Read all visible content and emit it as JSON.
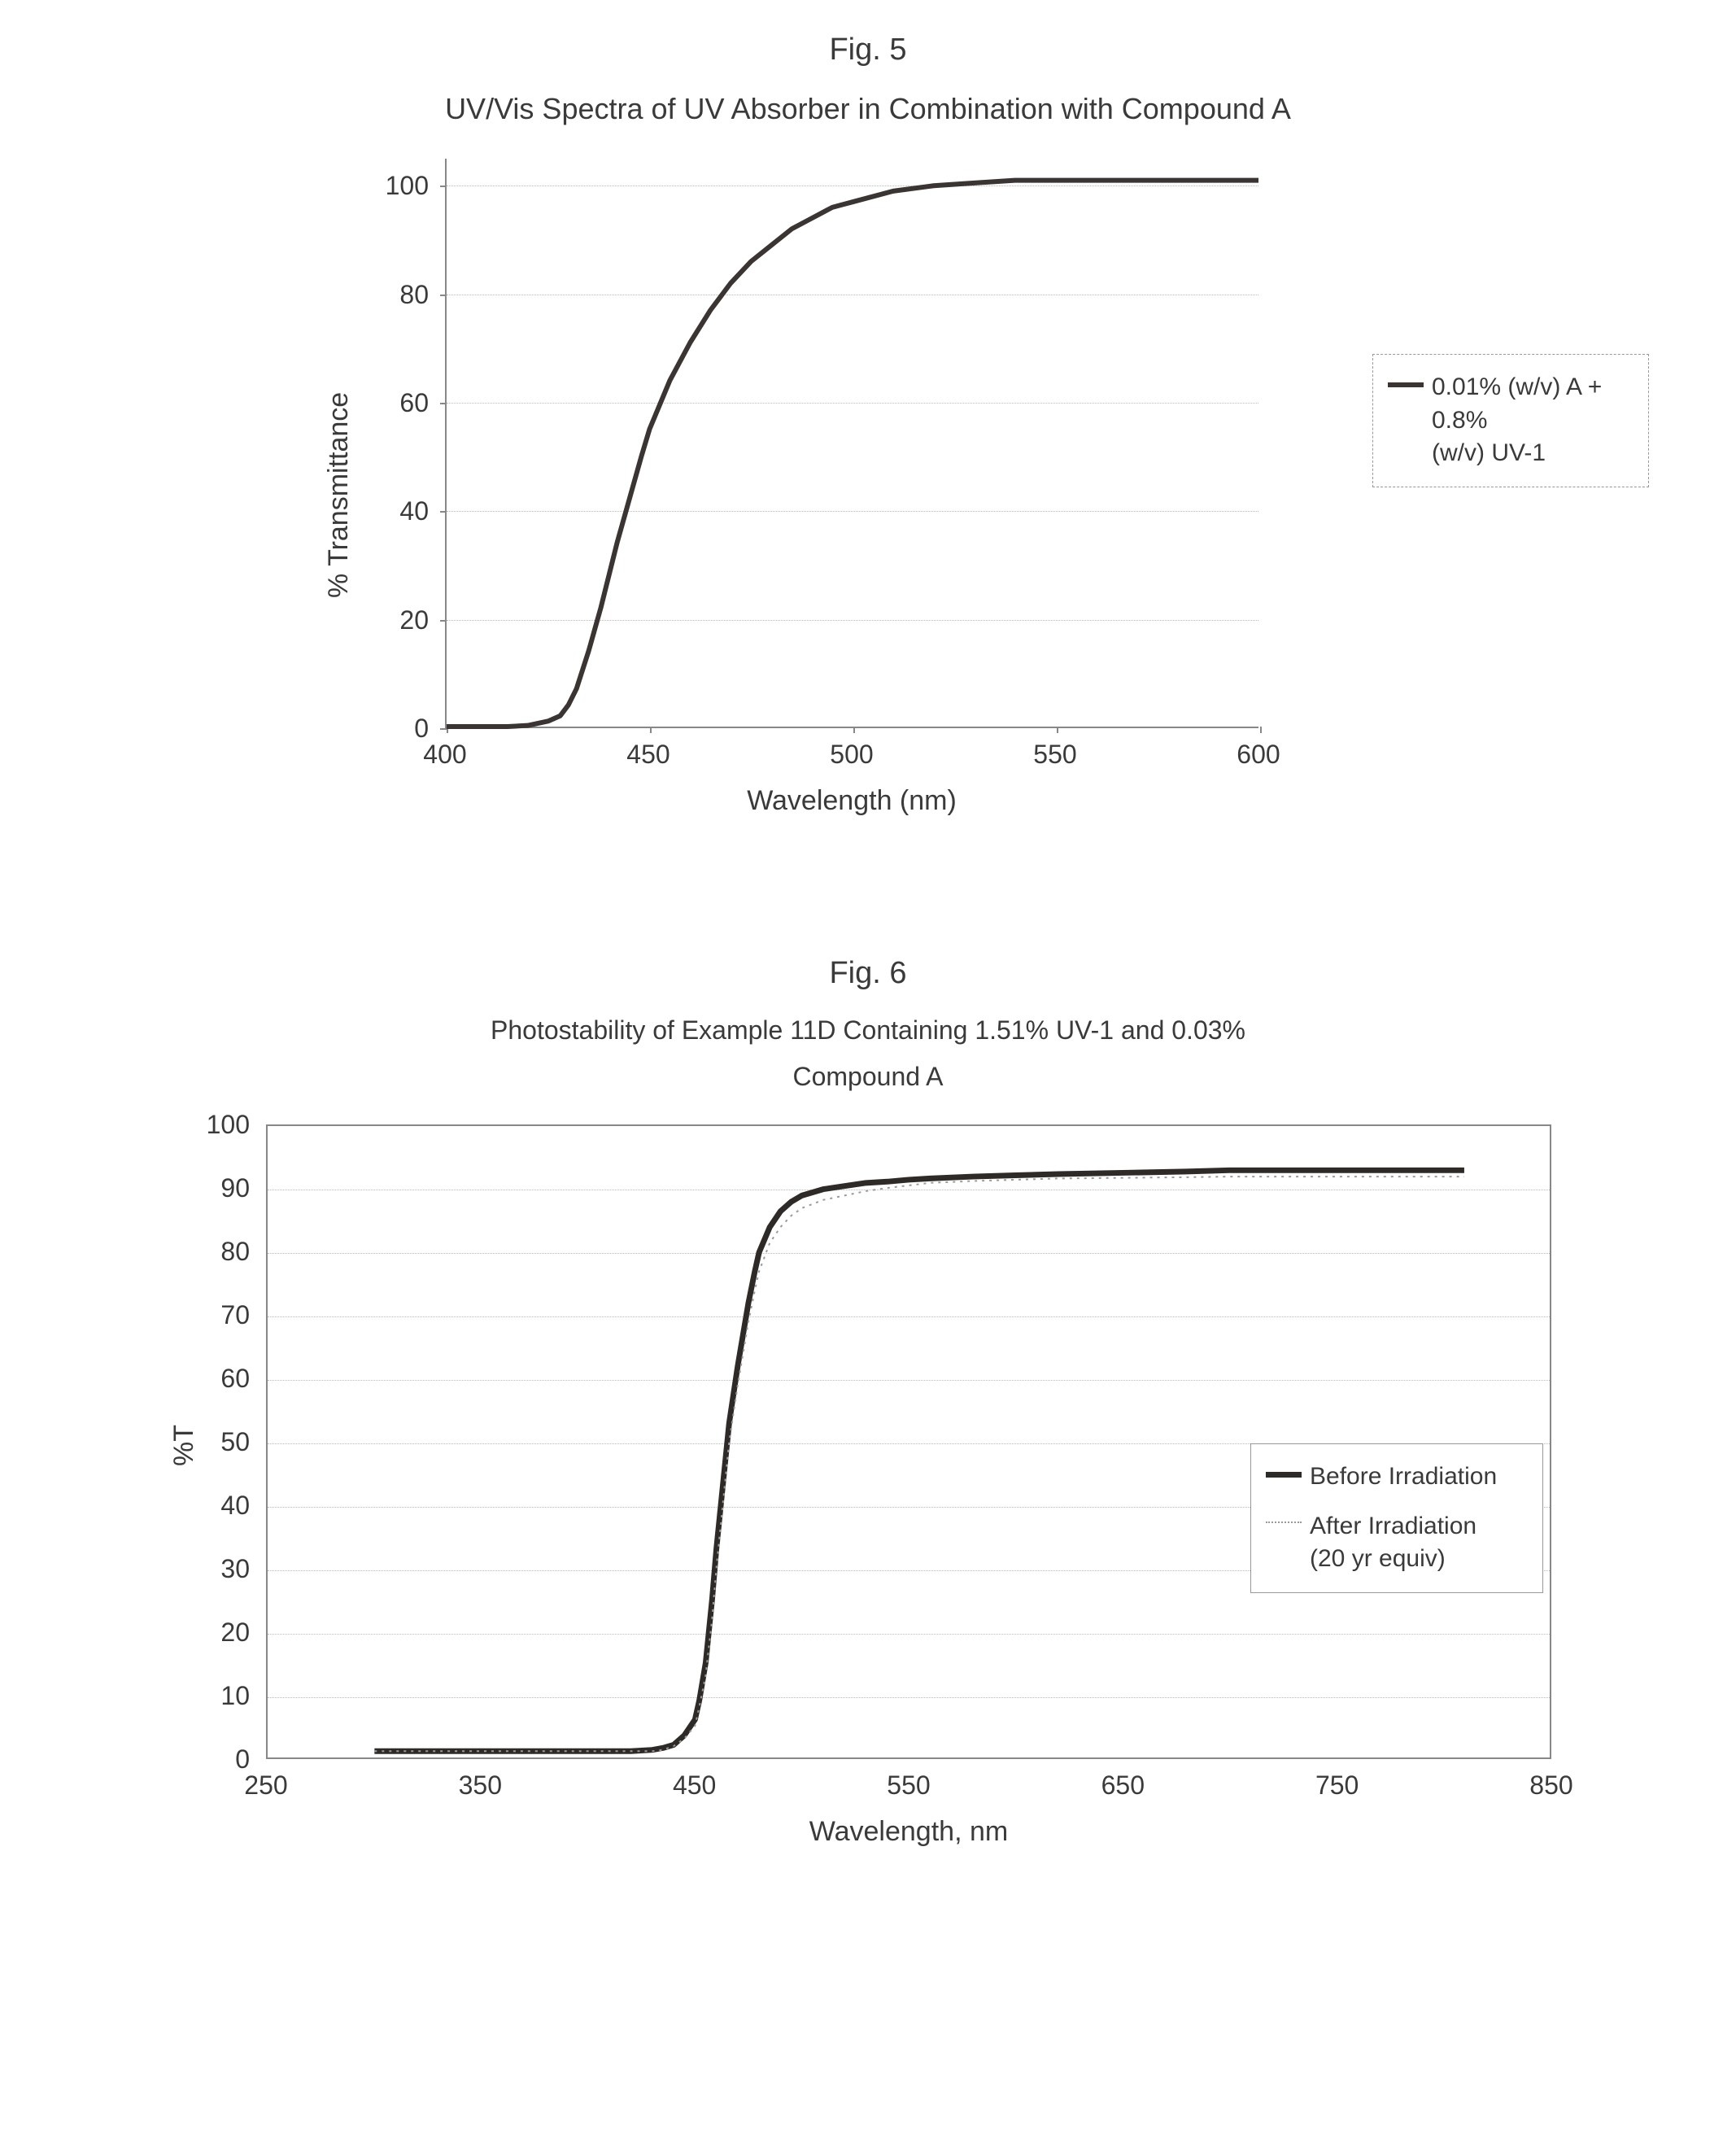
{
  "fig5": {
    "label": "Fig. 5",
    "title": "UV/Vis Spectra of UV Absorber in Combination with Compound A",
    "ylabel": "% Transmittance",
    "xlabel": "Wavelength (nm)",
    "xlim": [
      400,
      600
    ],
    "ylim": [
      0,
      105
    ],
    "xticks": [
      400,
      450,
      500,
      550,
      600
    ],
    "yticks": [
      0,
      20,
      40,
      60,
      80,
      100
    ],
    "tick_fontsize": 32,
    "label_fontsize": 34,
    "grid_color": "#bbbbbb",
    "axis_color": "#888888",
    "background_color": "#ffffff",
    "series": [
      {
        "label_line1": "0.01% (w/v) A + 0.8%",
        "label_line2": "(w/v) UV-1",
        "color": "#3a3432",
        "line_width": 6,
        "x": [
          400,
          405,
          410,
          415,
          420,
          425,
          428,
          430,
          432,
          435,
          438,
          440,
          442,
          445,
          448,
          450,
          455,
          460,
          465,
          470,
          475,
          480,
          485,
          490,
          495,
          500,
          510,
          520,
          530,
          540,
          550,
          560,
          570,
          580,
          590,
          600
        ],
        "y": [
          0,
          0,
          0,
          0,
          0.2,
          1,
          2,
          4,
          7,
          14,
          22,
          28,
          34,
          42,
          50,
          55,
          64,
          71,
          77,
          82,
          86,
          89,
          92,
          94,
          96,
          97,
          99,
          100,
          100.5,
          101,
          101,
          101,
          101,
          101,
          101,
          101
        ]
      }
    ],
    "legend_border": "1px dashed #999999"
  },
  "fig6": {
    "label": "Fig. 6",
    "title_line1": "Photostability of Example 11D Containing 1.51% UV-1 and 0.03%",
    "title_line2": "Compound A",
    "ylabel": "%T",
    "xlabel": "Wavelength, nm",
    "xlim": [
      250,
      850
    ],
    "ylim": [
      0,
      100
    ],
    "xticks": [
      250,
      350,
      450,
      550,
      650,
      750,
      850
    ],
    "yticks": [
      0,
      10,
      20,
      30,
      40,
      50,
      60,
      70,
      80,
      90,
      100
    ],
    "tick_fontsize": 32,
    "label_fontsize": 32,
    "grid_color": "#bbbbbb",
    "axis_color": "#888888",
    "background_color": "#ffffff",
    "series": [
      {
        "label": "Before Irradiation",
        "color": "#2e2a28",
        "line_width": 7,
        "style": "solid",
        "x": [
          300,
          320,
          340,
          360,
          380,
          400,
          410,
          420,
          430,
          435,
          440,
          445,
          450,
          452,
          455,
          458,
          460,
          463,
          466,
          470,
          475,
          478,
          480,
          485,
          490,
          495,
          500,
          510,
          520,
          530,
          540,
          550,
          560,
          580,
          600,
          620,
          650,
          680,
          700,
          730,
          760,
          790,
          810
        ],
        "y": [
          1,
          1,
          1,
          1,
          1,
          1,
          1,
          1,
          1.2,
          1.5,
          2,
          3.5,
          6,
          9,
          15,
          25,
          33,
          43,
          53,
          62,
          72,
          77,
          80,
          84,
          86.5,
          88,
          89,
          90,
          90.5,
          91,
          91.2,
          91.5,
          91.7,
          92,
          92.2,
          92.4,
          92.6,
          92.8,
          93,
          93,
          93,
          93,
          93
        ]
      },
      {
        "label_line1": "After Irradiation",
        "label_line2": "(20 yr equiv)",
        "color": "#9a9a9a",
        "line_width": 2,
        "style": "dotted",
        "x": [
          300,
          320,
          340,
          360,
          380,
          400,
          410,
          420,
          430,
          435,
          440,
          445,
          450,
          452,
          455,
          458,
          460,
          463,
          466,
          470,
          475,
          478,
          480,
          485,
          490,
          495,
          500,
          510,
          520,
          530,
          540,
          550,
          560,
          580,
          600,
          620,
          650,
          680,
          700,
          730,
          760,
          790,
          810
        ],
        "y": [
          1,
          1,
          1,
          1,
          1,
          1,
          1,
          1,
          1,
          1.2,
          1.8,
          3,
          5,
          8,
          13,
          22,
          30,
          40,
          50,
          59,
          69,
          74,
          77,
          81.5,
          84,
          85.8,
          87,
          88.3,
          89,
          89.7,
          90.2,
          90.6,
          91,
          91.3,
          91.5,
          91.7,
          91.8,
          91.9,
          92,
          92,
          92,
          92,
          92
        ]
      }
    ],
    "legend_border": "1px solid #999999"
  }
}
